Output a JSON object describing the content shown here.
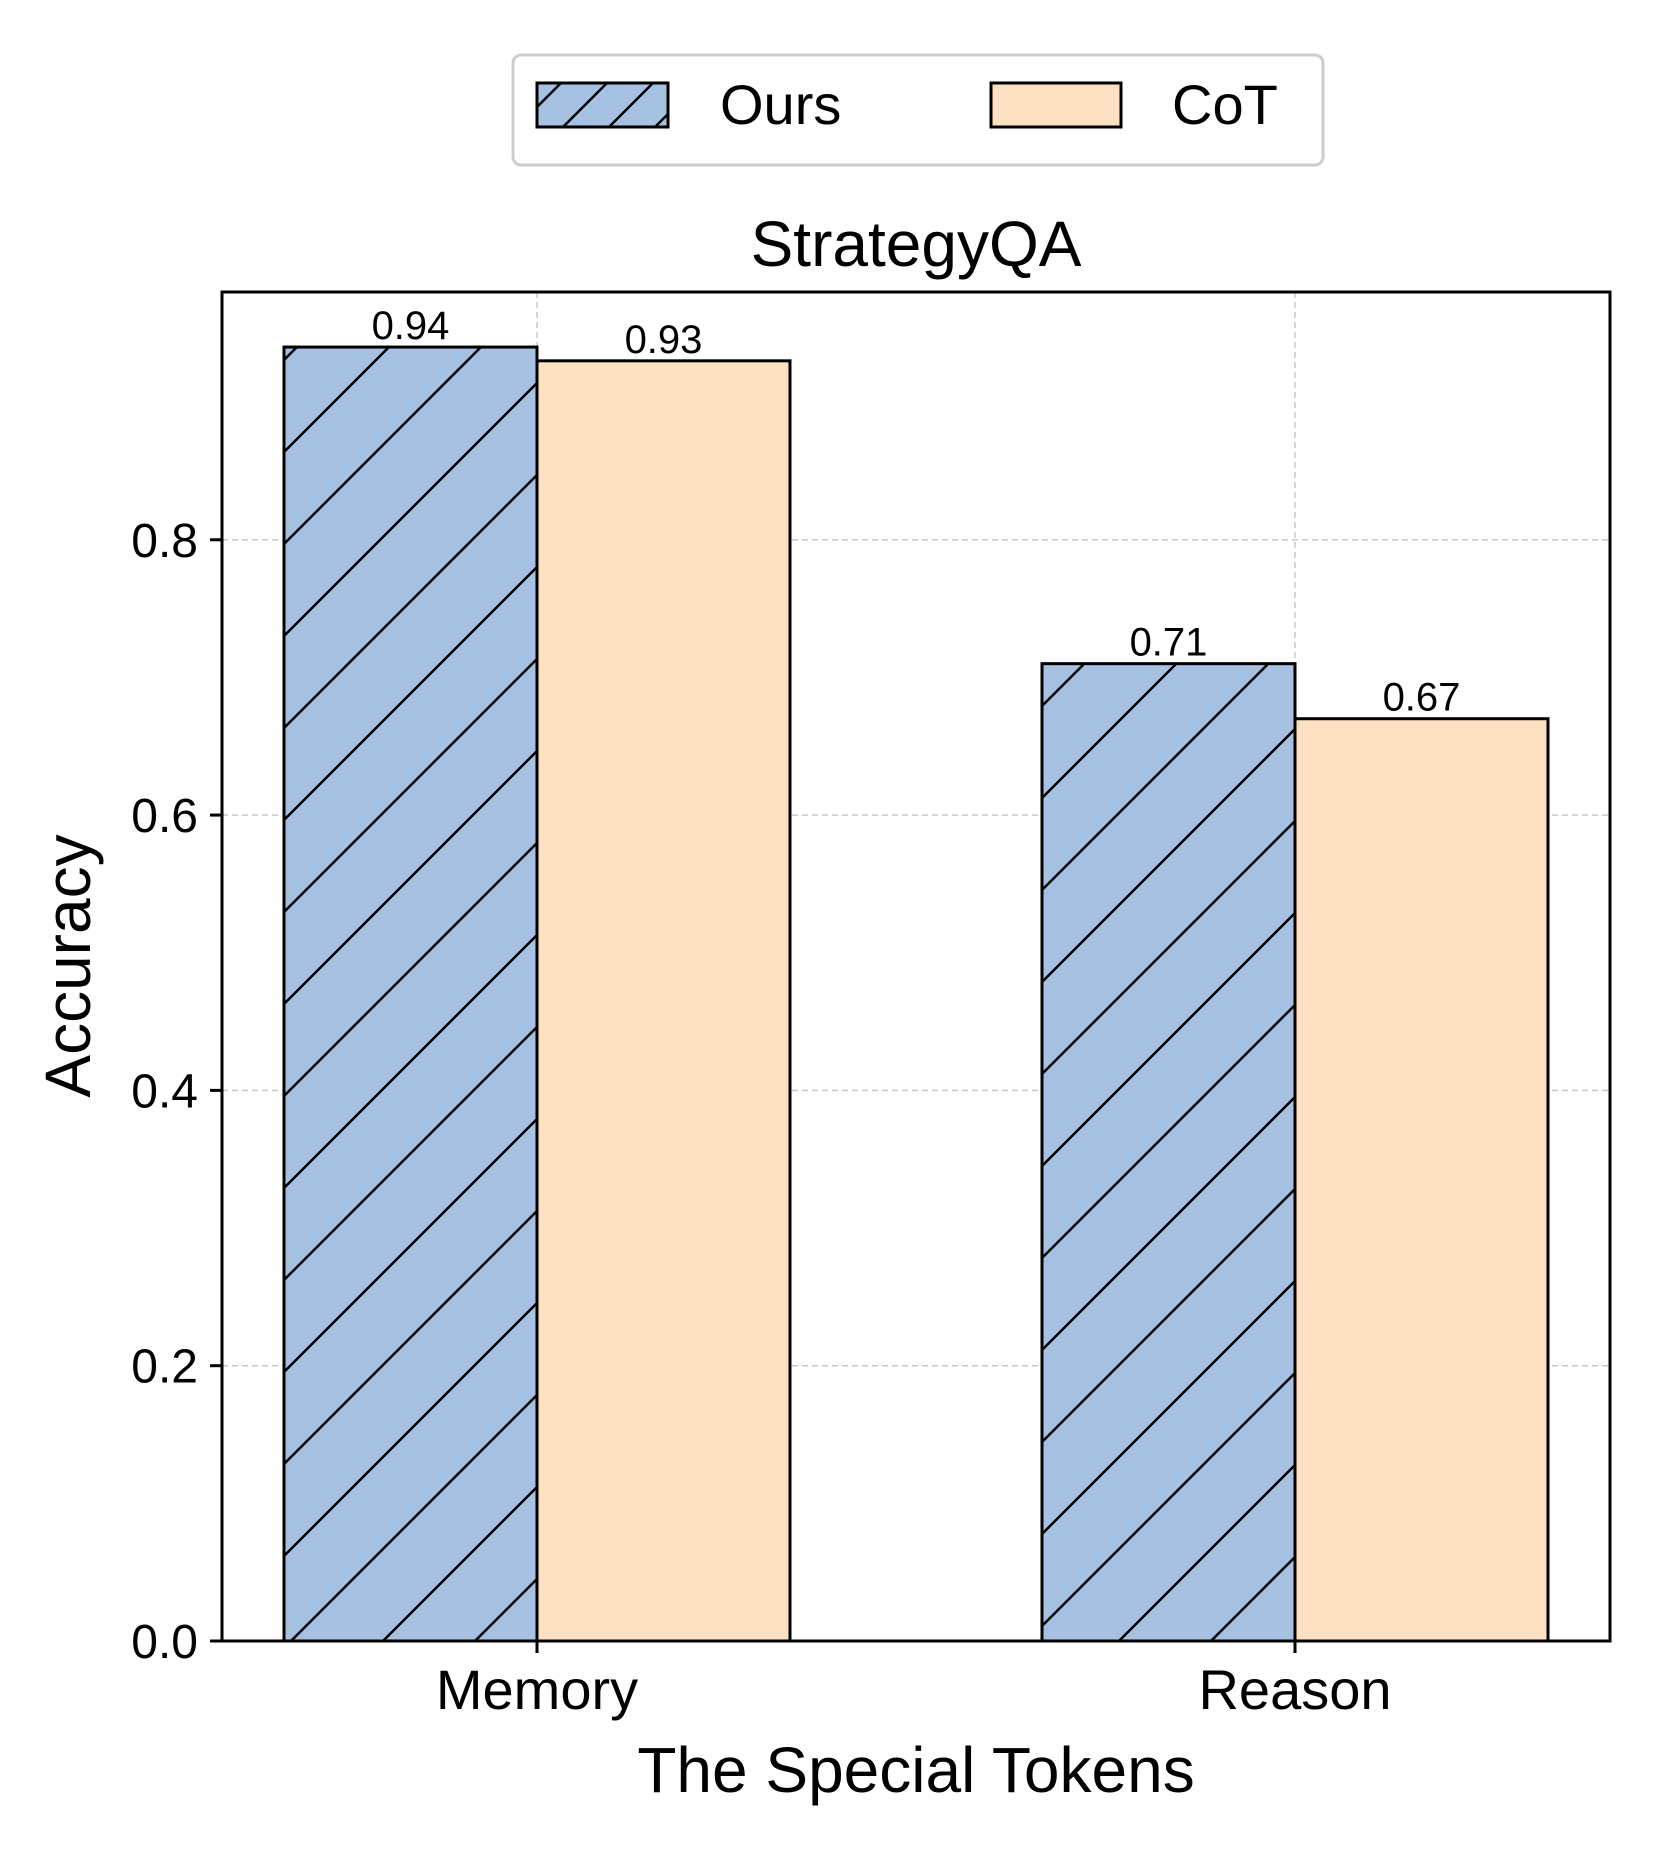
{
  "chart_data": {
    "type": "bar",
    "title": "StrategyQA",
    "xlabel": "The Special Tokens",
    "ylabel": "Accuracy",
    "categories": [
      "Memory",
      "Reason"
    ],
    "series": [
      {
        "name": "Ours",
        "values": [
          0.94,
          0.71
        ],
        "labels": [
          "0.94",
          "0.71"
        ],
        "color": "#a6c1e2",
        "hatch": "/"
      },
      {
        "name": "CoT",
        "values": [
          0.93,
          0.67
        ],
        "labels": [
          "0.93",
          "0.67"
        ],
        "color": "#fde0c2",
        "hatch": "none"
      }
    ],
    "ylim": [
      0,
      0.98
    ],
    "yticks": [
      0.0,
      0.2,
      0.4,
      0.6,
      0.8
    ],
    "ytick_labels": [
      "0.0",
      "0.2",
      "0.4",
      "0.6",
      "0.8"
    ],
    "grid": true,
    "legend_position": "above-plot"
  }
}
